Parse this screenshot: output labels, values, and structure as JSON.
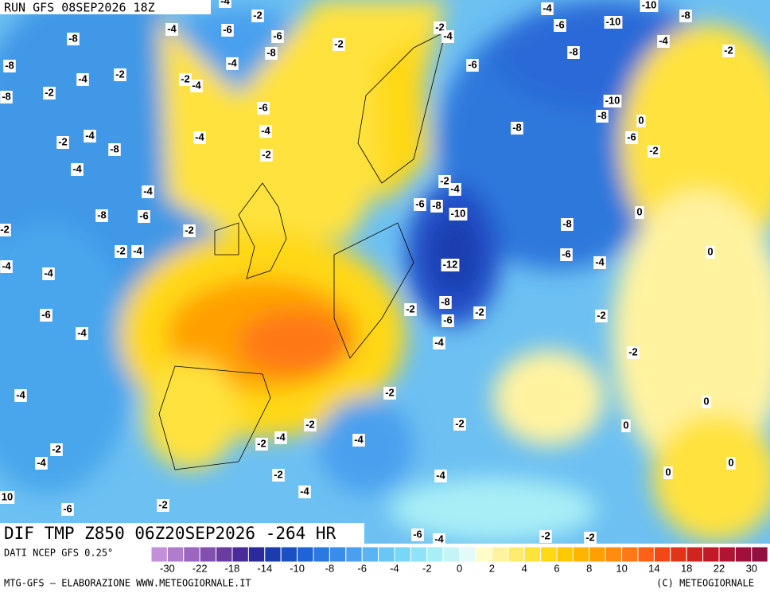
{
  "header": {
    "run": "RUN GFS 08SEP2026 18Z"
  },
  "map": {
    "title": "DIF TMP Z850 06Z20SEP2026 -264 HR",
    "contour_labels": [
      -4,
      -2,
      -4,
      -10,
      -8,
      -8,
      -4,
      -6,
      -6,
      -2,
      -2,
      -4,
      -6,
      -10,
      -4,
      -8,
      -4,
      -2,
      -2,
      -4,
      -4,
      -8,
      -2,
      -8,
      -6,
      -8,
      -2,
      -6,
      -10,
      -8,
      0,
      -4,
      -2,
      -8,
      -4,
      -4,
      -2,
      -8,
      -6,
      -2,
      -4,
      -4,
      -2,
      -4,
      -6,
      -8,
      -10,
      0,
      -8,
      -6,
      -2,
      -2,
      -8,
      -6,
      -4,
      0,
      -2,
      -4,
      -12,
      -4,
      -4,
      -8,
      -2,
      -2,
      -6,
      -2,
      -6,
      -4,
      -4,
      -2,
      -2,
      -4,
      0,
      -2,
      0,
      -2,
      -4,
      -2,
      -4,
      -2,
      -4,
      0,
      0,
      -2,
      -4,
      -4,
      -2,
      10,
      -6,
      -6,
      -2,
      -2,
      -4
    ]
  },
  "colorbar": {
    "colors": [
      "#c38fd8",
      "#b07ccc",
      "#9a66bf",
      "#8450b0",
      "#6a3ca0",
      "#4a2c98",
      "#2a2a9a",
      "#1b3cae",
      "#1a50c4",
      "#1e64d6",
      "#2a78e2",
      "#3a8cea",
      "#4aa0ee",
      "#5ab4f2",
      "#6ac6f4",
      "#7ad6f6",
      "#8ee4f6",
      "#a8eef6",
      "#c4f4f6",
      "#e2faf8",
      "#fffcc8",
      "#fff3a0",
      "#ffec6e",
      "#ffe23c",
      "#ffd816",
      "#ffc800",
      "#ffb400",
      "#ffa000",
      "#ff8c10",
      "#ff7818",
      "#ff6018",
      "#f24818",
      "#e23418",
      "#d02420",
      "#c01a28",
      "#b01430",
      "#a01038",
      "#901040"
    ],
    "ticks": [
      -30,
      -22,
      -18,
      -14,
      -10,
      -8,
      -6,
      -4,
      -2,
      0,
      2,
      4,
      6,
      8,
      10,
      14,
      18,
      22,
      30
    ]
  },
  "footer": {
    "source": "DATI NCEP GFS 0.25°",
    "credit": "MTG-GFS — ELABORAZIONE WWW.METEOGIORNALE.IT",
    "copyright": "(C) METEOGIORNALE"
  }
}
